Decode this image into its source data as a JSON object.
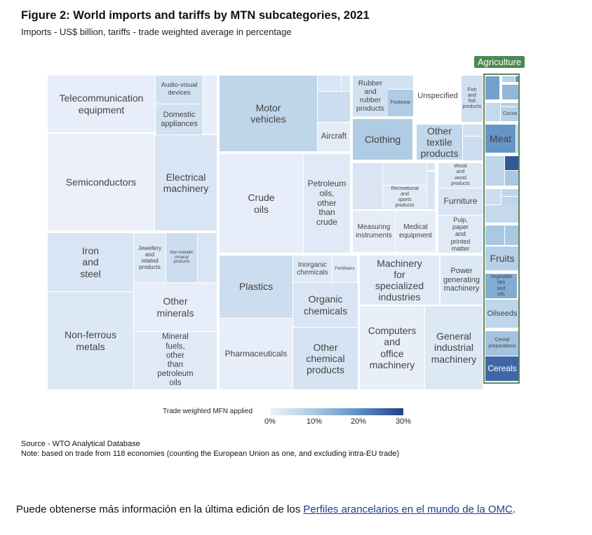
{
  "chart_data": {
    "type": "treemap",
    "title": "Figure 2: World imports and tariffs by MTN subcategories, 2021",
    "subtitle": "Imports - US$ billion, tariffs - trade weighted average in percentage",
    "group_label": "Agriculture",
    "group_color": "#4b8a4e",
    "color_scale": {
      "label": "Trade weighted MFN applied",
      "ticks": [
        "0%",
        "10%",
        "20%",
        "30%"
      ],
      "range": [
        0,
        30
      ],
      "colors": [
        "#eef2fb",
        "#a9c8e2",
        "#5e8fc4",
        "#1f3f8a"
      ]
    },
    "tiles": [
      {
        "label": "Telecommunication\nequipment",
        "tariff": 1
      },
      {
        "label": "Audio-visual\ndevices",
        "tariff": 4
      },
      {
        "label": "Domestic\nappliances",
        "tariff": 4
      },
      {
        "label": "",
        "tariff": 1
      },
      {
        "label": "Semiconductors",
        "tariff": 0.5
      },
      {
        "label": "Electrical\nmachinery",
        "tariff": 3
      },
      {
        "label": "Iron\nand\nsteel",
        "tariff": 3
      },
      {
        "label": "Jewellery\nand\nrelated\nproducts",
        "tariff": 2.5
      },
      {
        "label": "Non-metallic\nmineral\nproducts",
        "tariff": 5
      },
      {
        "label": "",
        "tariff": 3
      },
      {
        "label": "Non-ferrous\nmetals",
        "tariff": 2.5
      },
      {
        "label": "Other\nminerals",
        "tariff": 1
      },
      {
        "label": "Mineral\nfuels,\nother\nthan\npetroleum\noils",
        "tariff": 2
      },
      {
        "label": "Motor\nvehicles",
        "tariff": 7
      },
      {
        "label": "",
        "tariff": 3
      },
      {
        "label": "",
        "tariff": 3
      },
      {
        "label": "",
        "tariff": 5
      },
      {
        "label": "Aircraft",
        "tariff": 1.5
      },
      {
        "label": "Crude\noils",
        "tariff": 1
      },
      {
        "label": "Petroleum\noils,\nother\nthan\ncrude",
        "tariff": 2
      },
      {
        "label": "Plastics",
        "tariff": 5
      },
      {
        "label": "Inorganic\nchemicals",
        "tariff": 2
      },
      {
        "label": "Fertilisers",
        "tariff": 2
      },
      {
        "label": "Organic\nchemicals",
        "tariff": 3
      },
      {
        "label": "Other\nchemical\nproducts",
        "tariff": 3.5
      },
      {
        "label": "Pharmaceuticals",
        "tariff": 1
      },
      {
        "label": "Rubber\nand\nrubber\nproducts",
        "tariff": 4
      },
      {
        "label": "",
        "tariff": 4
      },
      {
        "label": "Footwear",
        "tariff": 9
      },
      {
        "label": "Unspecified",
        "tariff": 0
      },
      {
        "label": "Fish\nand\nfish\nproducts",
        "tariff": 4.5
      },
      {
        "label": "Clothing",
        "tariff": 9
      },
      {
        "label": "Other\ntextile\nproducts",
        "tariff": 6.5
      },
      {
        "label": "",
        "tariff": 4
      },
      {
        "label": "",
        "tariff": 5
      },
      {
        "label": "",
        "tariff": 3
      },
      {
        "label": "",
        "tariff": 2.5
      },
      {
        "label": "",
        "tariff": 3
      },
      {
        "label": "",
        "tariff": 3
      },
      {
        "label": "Recreational\nand\nsports\nproducts",
        "tariff": 2
      },
      {
        "label": "Wood\nand\nwood\nproducts",
        "tariff": 2.5
      },
      {
        "label": "Furniture",
        "tariff": 3
      },
      {
        "label": "Measuring\ninstruments",
        "tariff": 1.2
      },
      {
        "label": "Medical\nequipment",
        "tariff": 1.2
      },
      {
        "label": "Pulp,\npaper\nand\nprinted\nmatter",
        "tariff": 2
      },
      {
        "label": "Machinery\nfor\nspecialized\nindustries",
        "tariff": 2
      },
      {
        "label": "Power\ngenerating\nmachinery",
        "tariff": 2.5
      },
      {
        "label": "Computers\nand\noffice\nmachinery",
        "tariff": 0.8
      },
      {
        "label": "General\nindustrial\nmachinery",
        "tariff": 2.5
      },
      {
        "label": "",
        "tariff": 17
      },
      {
        "label": "",
        "tariff": 8
      },
      {
        "label": "",
        "tariff": 20
      },
      {
        "label": "",
        "tariff": 13
      },
      {
        "label": "",
        "tariff": 6
      },
      {
        "label": "",
        "tariff": 8
      },
      {
        "label": "Cocoa",
        "tariff": 8
      },
      {
        "label": "Meat",
        "tariff": 19
      },
      {
        "label": "",
        "tariff": 7
      },
      {
        "label": "",
        "tariff": 7
      },
      {
        "label": "",
        "tariff": 27
      },
      {
        "label": "",
        "tariff": 10
      },
      {
        "label": "",
        "tariff": 5
      },
      {
        "label": "",
        "tariff": 7
      },
      {
        "label": "",
        "tariff": 7
      },
      {
        "label": "",
        "tariff": 6
      },
      {
        "label": "",
        "tariff": 10
      },
      {
        "label": "",
        "tariff": 10
      },
      {
        "label": "Fruits",
        "tariff": 8
      },
      {
        "label": "Vegetable\nfats\nand\noils",
        "tariff": 15
      },
      {
        "label": "Oilseeds",
        "tariff": 7
      },
      {
        "label": "Cereal\npreparations",
        "tariff": 11
      },
      {
        "label": "Cereals",
        "tariff": 25
      }
    ]
  },
  "footer": {
    "source": "Source - WTO Analytical Database",
    "note": "Note: based on trade from 118 economies (counting the European Union as one, and excluding intra-EU trade)",
    "more_prefix": "Puede obtenerse más información en la última edición de los ",
    "more_link": "Perfiles arancelarios en el mundo de la OMC",
    "more_suffix": "."
  }
}
